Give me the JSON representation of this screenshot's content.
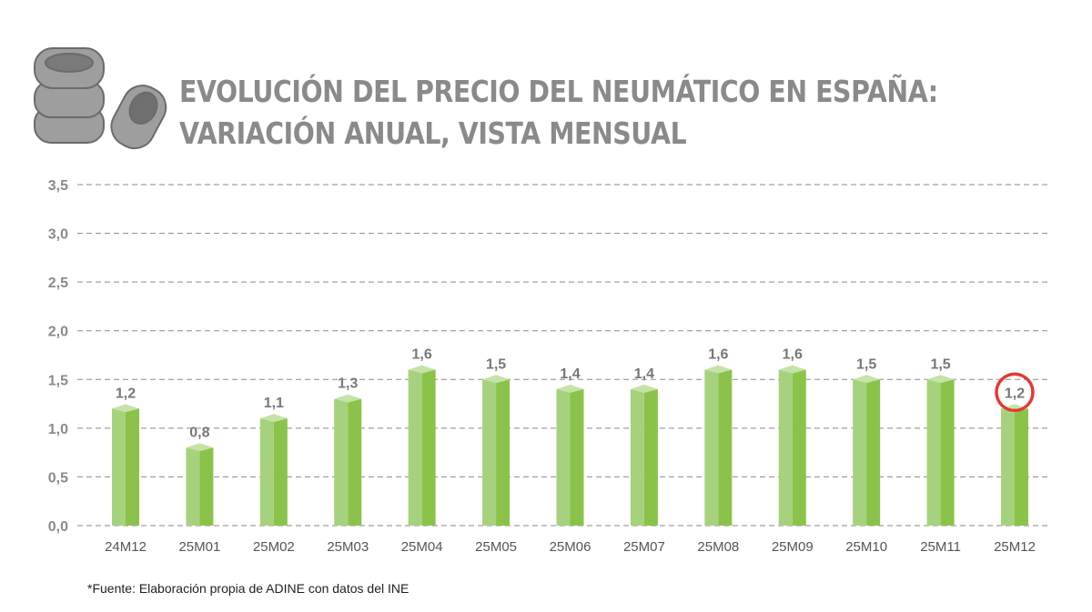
{
  "title_lines": [
    "EVOLUCIÓN DEL PRECIO DEL NEUMÁTICO EN ESPAÑA:",
    "VARIACIÓN ANUAL, VISTA MENSUAL"
  ],
  "source": "*Fuente: Elaboración propia de ADINE con datos del INE",
  "logo_icon": "tire-stack-icon",
  "colors": {
    "bar_light": "#a6d27d",
    "bar_dark": "#8bc34a",
    "bar_top": "#c5e3a6",
    "highlight": "#e53935",
    "text": "#8a8a8a"
  },
  "chart_data": {
    "type": "bar",
    "categories": [
      "24M12",
      "25M01",
      "25M02",
      "25M03",
      "25M04",
      "25M05",
      "25M06",
      "25M07",
      "25M08",
      "25M09",
      "25M10",
      "25M11",
      "25M12"
    ],
    "values": [
      1.2,
      0.8,
      1.1,
      1.3,
      1.6,
      1.5,
      1.4,
      1.4,
      1.6,
      1.6,
      1.5,
      1.5,
      1.2
    ],
    "value_labels": [
      "1,2",
      "0,8",
      "1,1",
      "1,3",
      "1,6",
      "1,5",
      "1,4",
      "1,4",
      "1,6",
      "1,6",
      "1,5",
      "1,5",
      "1,2"
    ],
    "yticks": [
      "0,0",
      "0,5",
      "1,0",
      "1,5",
      "2,0",
      "2,5",
      "3,0",
      "3,5"
    ],
    "ylim": [
      0,
      3.5
    ],
    "grid": true,
    "highlighted_category": "25M12"
  }
}
